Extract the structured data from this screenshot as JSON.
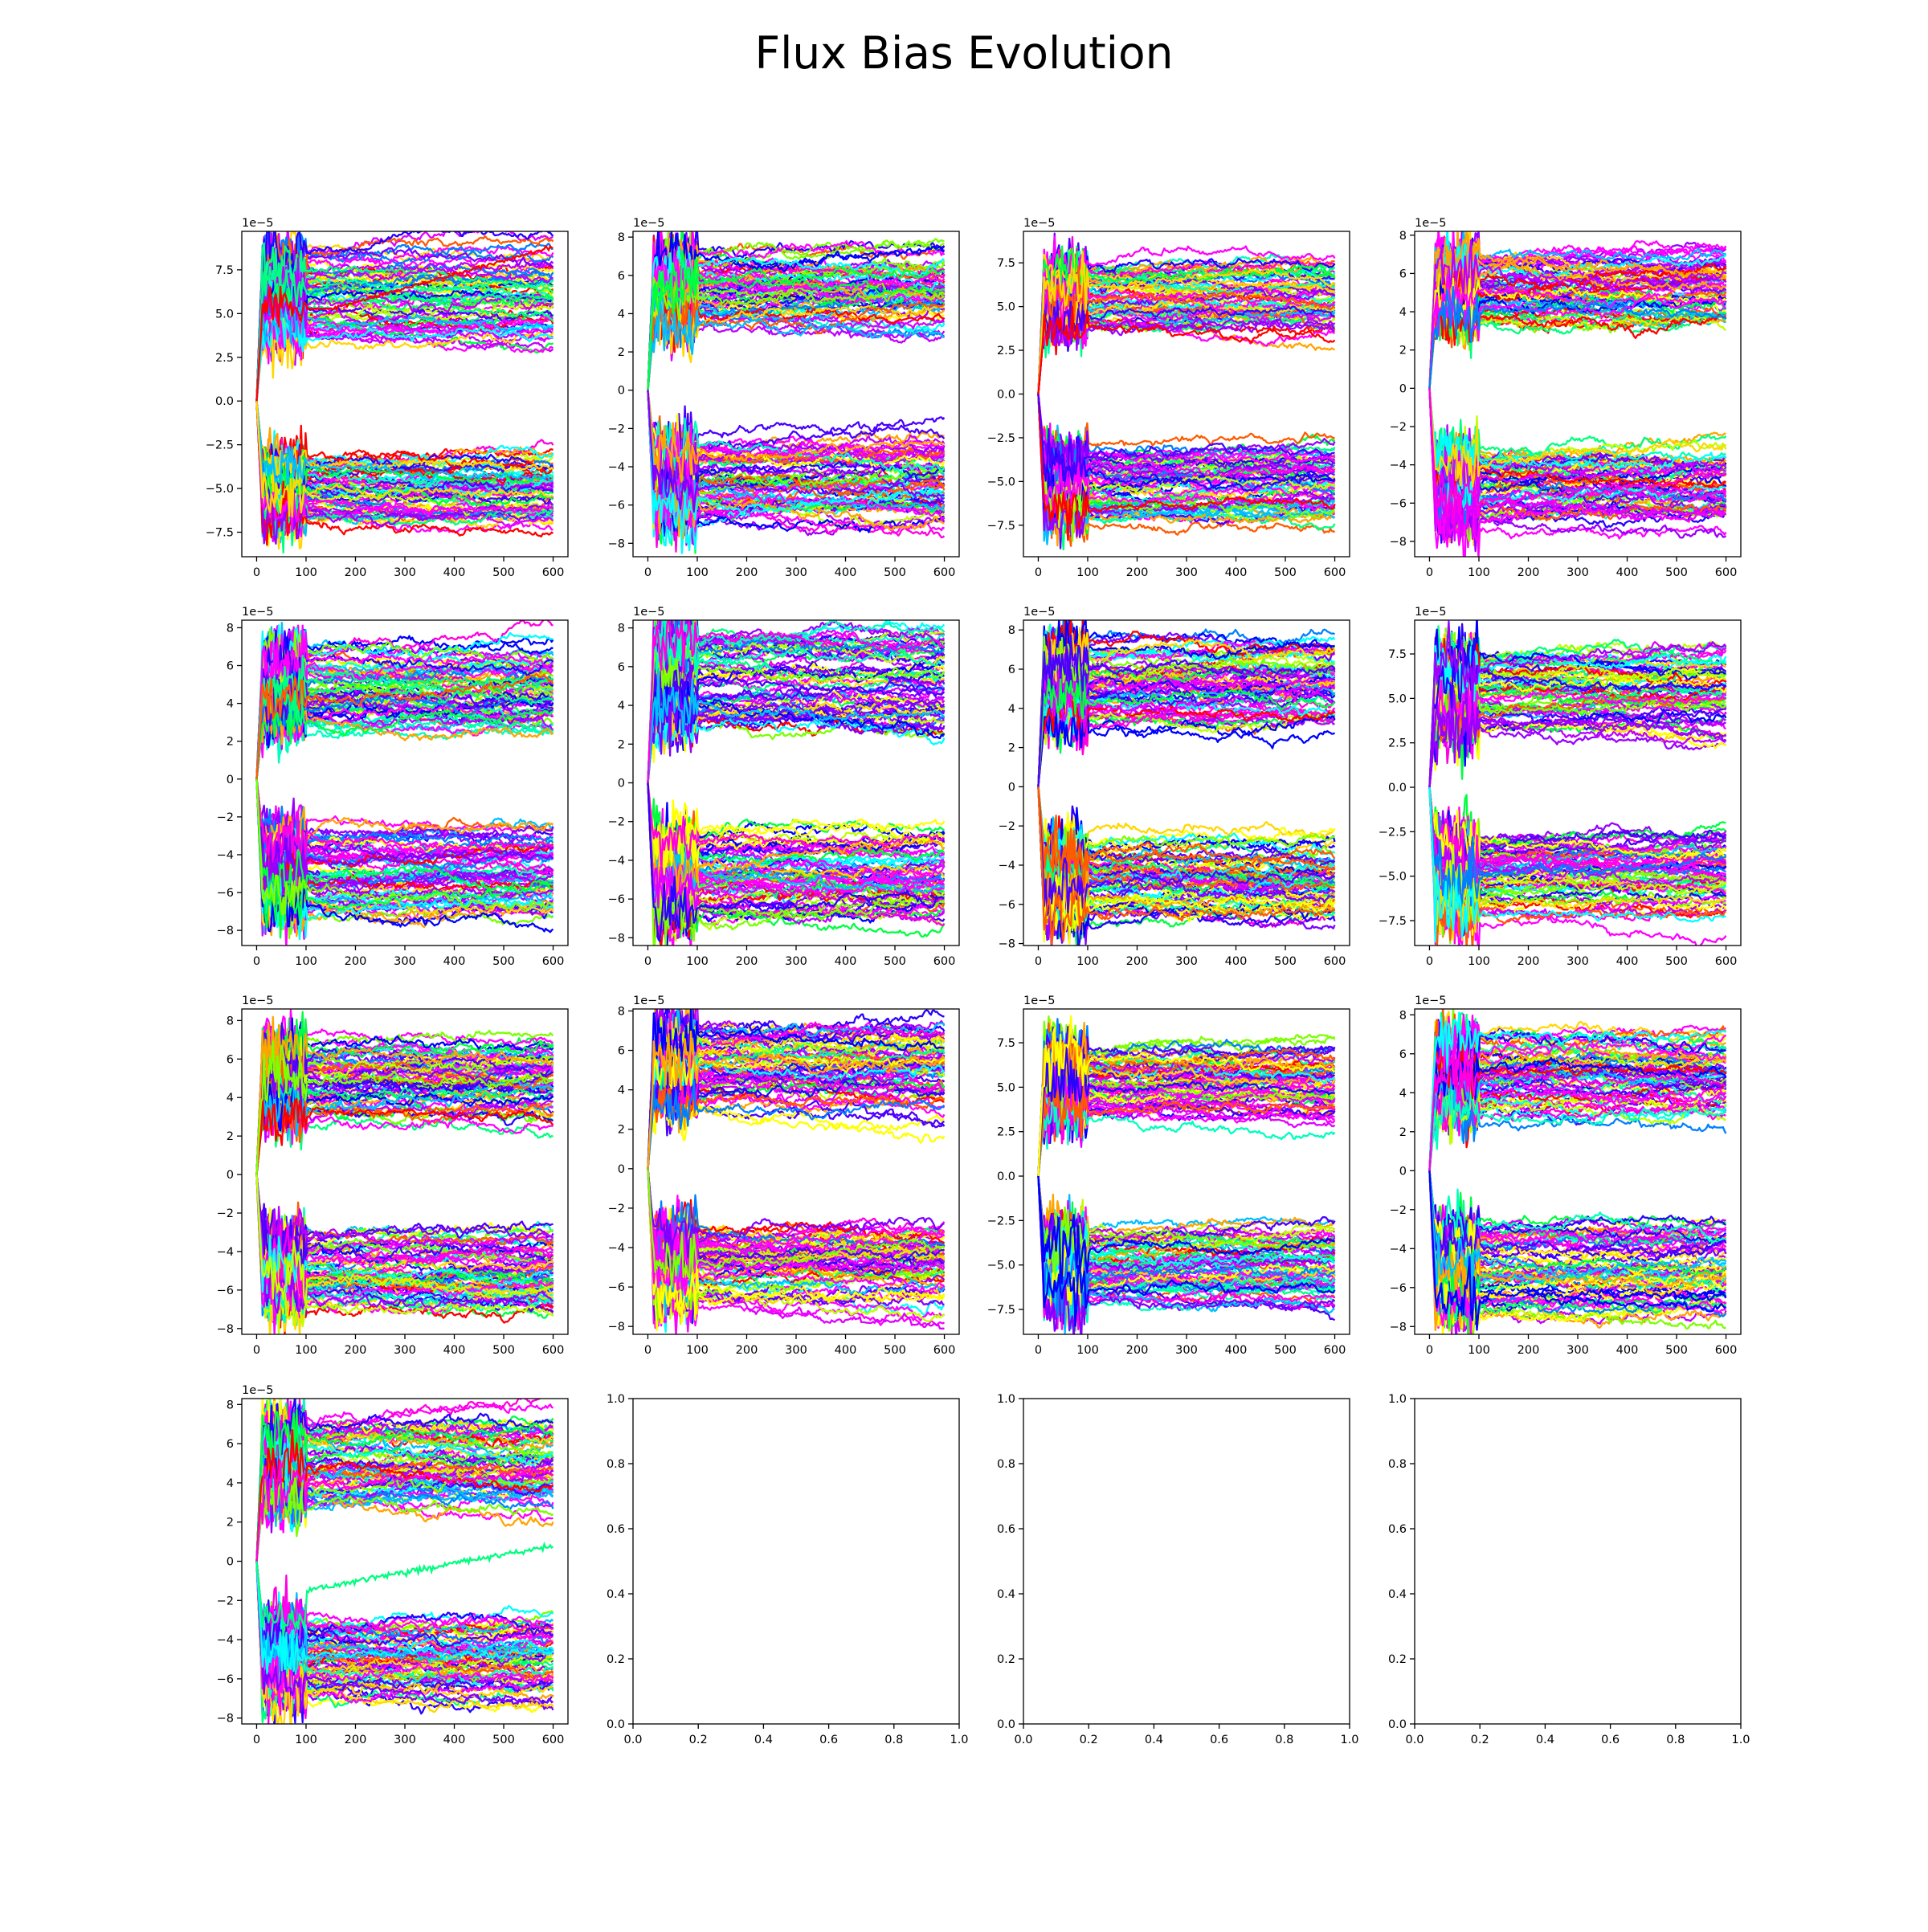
{
  "figure": {
    "title": "Flux Bias Evolution"
  },
  "chart_data": [
    {
      "panel": 1,
      "type": "line",
      "x_ticks": [
        0,
        100,
        200,
        300,
        400,
        500,
        600
      ],
      "xlim": [
        -30,
        630
      ],
      "y_ticks": [
        "−7.5",
        "−5.0",
        "−2.5",
        "0.0",
        "2.5",
        "5.0",
        "7.5"
      ],
      "y_tick_values": [
        -7.5,
        -5,
        -2.5,
        0,
        2.5,
        5,
        7.5
      ],
      "ylim": [
        -8.9,
        9.7
      ],
      "offset_label": "1e−5",
      "noise_scale": 1.0,
      "series_summary": {
        "n_series": 140,
        "x_range": [
          0,
          600
        ],
        "start": 0,
        "upper_band": [
          3.0,
          8.8
        ],
        "lower_band": [
          -7.1,
          -3.0
        ],
        "outliers": [
          {
            "color": "#ff0000",
            "end": 8.8,
            "from": 150
          }
        ]
      }
    },
    {
      "panel": 2,
      "type": "line",
      "x_ticks": [
        0,
        100,
        200,
        300,
        400,
        500,
        600
      ],
      "xlim": [
        -30,
        630
      ],
      "y_ticks": [
        "−8",
        "−6",
        "−4",
        "−2",
        "0",
        "2",
        "4",
        "6",
        "8"
      ],
      "y_tick_values": [
        -8,
        -6,
        -4,
        -2,
        0,
        2,
        4,
        6,
        8
      ],
      "ylim": [
        -8.7,
        8.3
      ],
      "offset_label": "1e−5",
      "noise_scale": 1.0,
      "series_summary": {
        "n_series": 140,
        "x_range": [
          0,
          600
        ],
        "start": 0,
        "upper_band": [
          2.8,
          7.5
        ],
        "lower_band": [
          -7.2,
          -2.4
        ]
      }
    },
    {
      "panel": 3,
      "type": "line",
      "x_ticks": [
        0,
        100,
        200,
        300,
        400,
        500,
        600
      ],
      "xlim": [
        -30,
        630
      ],
      "y_ticks": [
        "−7.5",
        "−5.0",
        "−2.5",
        "0.0",
        "2.5",
        "5.0",
        "7.5"
      ],
      "y_tick_values": [
        -7.5,
        -5,
        -2.5,
        0,
        2.5,
        5,
        7.5
      ],
      "ylim": [
        -9.3,
        9.3
      ],
      "offset_label": "1e−5",
      "noise_scale": 1.0,
      "series_summary": {
        "n_series": 140,
        "x_range": [
          0,
          600
        ],
        "start": 0,
        "upper_band": [
          3.5,
          7.9
        ],
        "lower_band": [
          -7.5,
          -2.8
        ]
      }
    },
    {
      "panel": 4,
      "type": "line",
      "x_ticks": [
        0,
        100,
        200,
        300,
        400,
        500,
        600
      ],
      "xlim": [
        -30,
        630
      ],
      "y_ticks": [
        "−8",
        "−6",
        "−4",
        "−2",
        "0",
        "2",
        "4",
        "6",
        "8"
      ],
      "y_tick_values": [
        -8,
        -6,
        -4,
        -2,
        0,
        2,
        4,
        6,
        8
      ],
      "ylim": [
        -8.8,
        8.2
      ],
      "offset_label": "1e−5",
      "noise_scale": 1.0,
      "series_summary": {
        "n_series": 140,
        "x_range": [
          0,
          600
        ],
        "start": 0,
        "upper_band": [
          3.0,
          7.2
        ],
        "lower_band": [
          -7.3,
          -3.1
        ]
      }
    },
    {
      "panel": 5,
      "type": "line",
      "x_ticks": [
        0,
        100,
        200,
        300,
        400,
        500,
        600
      ],
      "xlim": [
        -30,
        630
      ],
      "y_ticks": [
        "−8",
        "−6",
        "−4",
        "−2",
        "0",
        "2",
        "4",
        "6",
        "8"
      ],
      "y_tick_values": [
        -8,
        -6,
        -4,
        -2,
        0,
        2,
        4,
        6,
        8
      ],
      "ylim": [
        -8.8,
        8.4
      ],
      "offset_label": "1e−5",
      "noise_scale": 1.0,
      "series_summary": {
        "n_series": 140,
        "x_range": [
          0,
          600
        ],
        "start": 0,
        "upper_band": [
          2.5,
          7.3
        ],
        "lower_band": [
          -7.3,
          -2.4
        ]
      }
    },
    {
      "panel": 6,
      "type": "line",
      "x_ticks": [
        0,
        100,
        200,
        300,
        400,
        500,
        600
      ],
      "xlim": [
        -30,
        630
      ],
      "y_ticks": [
        "−8",
        "−6",
        "−4",
        "−2",
        "0",
        "2",
        "4",
        "6",
        "8"
      ],
      "y_tick_values": [
        -8,
        -6,
        -4,
        -2,
        0,
        2,
        4,
        6,
        8
      ],
      "ylim": [
        -8.4,
        8.4
      ],
      "offset_label": "1e−5",
      "noise_scale": 1.0,
      "series_summary": {
        "n_series": 140,
        "x_range": [
          0,
          600
        ],
        "start": 0,
        "upper_band": [
          2.7,
          7.9
        ],
        "lower_band": [
          -7.3,
          -2.4
        ]
      }
    },
    {
      "panel": 7,
      "type": "line",
      "x_ticks": [
        0,
        100,
        200,
        300,
        400,
        500,
        600
      ],
      "xlim": [
        -30,
        630
      ],
      "y_ticks": [
        "−8",
        "−6",
        "−4",
        "−2",
        "0",
        "2",
        "4",
        "6",
        "8"
      ],
      "y_tick_values": [
        -8,
        -6,
        -4,
        -2,
        0,
        2,
        4,
        6,
        8
      ],
      "ylim": [
        -8.1,
        8.5
      ],
      "offset_label": "1e−5",
      "noise_scale": 1.0,
      "series_summary": {
        "n_series": 140,
        "x_range": [
          0,
          600
        ],
        "start": 0,
        "upper_band": [
          2.8,
          7.8
        ],
        "lower_band": [
          -7.2,
          -2.6
        ]
      }
    },
    {
      "panel": 8,
      "type": "line",
      "x_ticks": [
        0,
        100,
        200,
        300,
        400,
        500,
        600
      ],
      "xlim": [
        -30,
        630
      ],
      "y_ticks": [
        "−7.5",
        "−5.0",
        "−2.5",
        "0.0",
        "2.5",
        "5.0",
        "7.5"
      ],
      "y_tick_values": [
        -7.5,
        -5,
        -2.5,
        0,
        2.5,
        5,
        7.5
      ],
      "ylim": [
        -8.9,
        9.4
      ],
      "offset_label": "1e−5",
      "noise_scale": 1.3,
      "series_summary": {
        "n_series": 140,
        "x_range": [
          0,
          600
        ],
        "start": 0,
        "upper_band": [
          3.0,
          7.8
        ],
        "lower_band": [
          -7.5,
          -2.5
        ]
      }
    },
    {
      "panel": 9,
      "type": "line",
      "x_ticks": [
        0,
        100,
        200,
        300,
        400,
        500,
        600
      ],
      "xlim": [
        -30,
        630
      ],
      "y_ticks": [
        "−8",
        "−6",
        "−4",
        "−2",
        "0",
        "2",
        "4",
        "6",
        "8"
      ],
      "y_tick_values": [
        -8,
        -6,
        -4,
        -2,
        0,
        2,
        4,
        6,
        8
      ],
      "ylim": [
        -8.3,
        8.6
      ],
      "offset_label": "1e−5",
      "noise_scale": 1.0,
      "series_summary": {
        "n_series": 140,
        "x_range": [
          0,
          600
        ],
        "start": 0,
        "upper_band": [
          2.6,
          7.2
        ],
        "lower_band": [
          -7.2,
          -2.6
        ]
      }
    },
    {
      "panel": 10,
      "type": "line",
      "x_ticks": [
        0,
        100,
        200,
        300,
        400,
        500,
        600
      ],
      "xlim": [
        -30,
        630
      ],
      "y_ticks": [
        "−8",
        "−6",
        "−4",
        "−2",
        "0",
        "2",
        "4",
        "6",
        "8"
      ],
      "y_tick_values": [
        -8,
        -6,
        -4,
        -2,
        0,
        2,
        4,
        6,
        8
      ],
      "ylim": [
        -8.4,
        8.1
      ],
      "offset_label": "1e−5",
      "noise_scale": 1.0,
      "series_summary": {
        "n_series": 140,
        "x_range": [
          0,
          600
        ],
        "start": 0,
        "upper_band": [
          3.0,
          7.5
        ],
        "lower_band": [
          -7.0,
          -2.8
        ]
      }
    },
    {
      "panel": 11,
      "type": "line",
      "x_ticks": [
        0,
        100,
        200,
        300,
        400,
        500,
        600
      ],
      "xlim": [
        -30,
        630
      ],
      "y_ticks": [
        "−7.5",
        "−5.0",
        "−2.5",
        "0.0",
        "2.5",
        "5.0",
        "7.5"
      ],
      "y_tick_values": [
        -7.5,
        -5,
        -2.5,
        0,
        2.5,
        5,
        7.5
      ],
      "ylim": [
        -8.9,
        9.4
      ],
      "offset_label": "1e−5",
      "noise_scale": 1.3,
      "series_summary": {
        "n_series": 140,
        "x_range": [
          0,
          600
        ],
        "start": 0,
        "upper_band": [
          3.0,
          7.3
        ],
        "lower_band": [
          -7.3,
          -3.0
        ]
      }
    },
    {
      "panel": 12,
      "type": "line",
      "x_ticks": [
        0,
        100,
        200,
        300,
        400,
        500,
        600
      ],
      "xlim": [
        -30,
        630
      ],
      "y_ticks": [
        "−8",
        "−6",
        "−4",
        "−2",
        "0",
        "2",
        "4",
        "6",
        "8"
      ],
      "y_tick_values": [
        -8,
        -6,
        -4,
        -2,
        0,
        2,
        4,
        6,
        8
      ],
      "ylim": [
        -8.4,
        8.3
      ],
      "offset_label": "1e−5",
      "noise_scale": 1.0,
      "series_summary": {
        "n_series": 140,
        "x_range": [
          0,
          600
        ],
        "start": 0,
        "upper_band": [
          2.6,
          7.3
        ],
        "lower_band": [
          -7.5,
          -2.5
        ]
      }
    },
    {
      "panel": 13,
      "type": "line",
      "x_ticks": [
        0,
        100,
        200,
        300,
        400,
        500,
        600
      ],
      "xlim": [
        -30,
        630
      ],
      "y_ticks": [
        "−8",
        "−6",
        "−4",
        "−2",
        "0",
        "2",
        "4",
        "6",
        "8"
      ],
      "y_tick_values": [
        -8,
        -6,
        -4,
        -2,
        0,
        2,
        4,
        6,
        8
      ],
      "ylim": [
        -8.3,
        8.3
      ],
      "offset_label": "1e−5",
      "noise_scale": 1.0,
      "series_summary": {
        "n_series": 140,
        "x_range": [
          0,
          600
        ],
        "start": 0,
        "upper_band": [
          2.6,
          7.4
        ],
        "lower_band": [
          -7.3,
          -2.6
        ],
        "outliers": [
          {
            "color": "#00ff7f",
            "end": 0.8,
            "from": 100
          }
        ]
      }
    },
    {
      "panel": 14,
      "type": "empty",
      "x_ticks": [
        "0.0",
        "0.2",
        "0.4",
        "0.6",
        "0.8",
        "1.0"
      ],
      "x_tick_values": [
        0,
        0.2,
        0.4,
        0.6,
        0.8,
        1
      ],
      "xlim": [
        0,
        1
      ],
      "y_ticks": [
        "0.0",
        "0.2",
        "0.4",
        "0.6",
        "0.8",
        "1.0"
      ],
      "y_tick_values": [
        0,
        0.2,
        0.4,
        0.6,
        0.8,
        1
      ],
      "ylim": [
        0,
        1
      ]
    },
    {
      "panel": 15,
      "type": "empty",
      "x_ticks": [
        "0.0",
        "0.2",
        "0.4",
        "0.6",
        "0.8",
        "1.0"
      ],
      "x_tick_values": [
        0,
        0.2,
        0.4,
        0.6,
        0.8,
        1
      ],
      "xlim": [
        0,
        1
      ],
      "y_ticks": [
        "0.0",
        "0.2",
        "0.4",
        "0.6",
        "0.8",
        "1.0"
      ],
      "y_tick_values": [
        0,
        0.2,
        0.4,
        0.6,
        0.8,
        1
      ],
      "ylim": [
        0,
        1
      ]
    },
    {
      "panel": 16,
      "type": "empty",
      "x_ticks": [
        "0.0",
        "0.2",
        "0.4",
        "0.6",
        "0.8",
        "1.0"
      ],
      "x_tick_values": [
        0,
        0.2,
        0.4,
        0.6,
        0.8,
        1
      ],
      "xlim": [
        0,
        1
      ],
      "y_ticks": [
        "0.0",
        "0.2",
        "0.4",
        "0.6",
        "0.8",
        "1.0"
      ],
      "y_tick_values": [
        0,
        0.2,
        0.4,
        0.6,
        0.8,
        1
      ],
      "ylim": [
        0,
        1
      ]
    }
  ]
}
